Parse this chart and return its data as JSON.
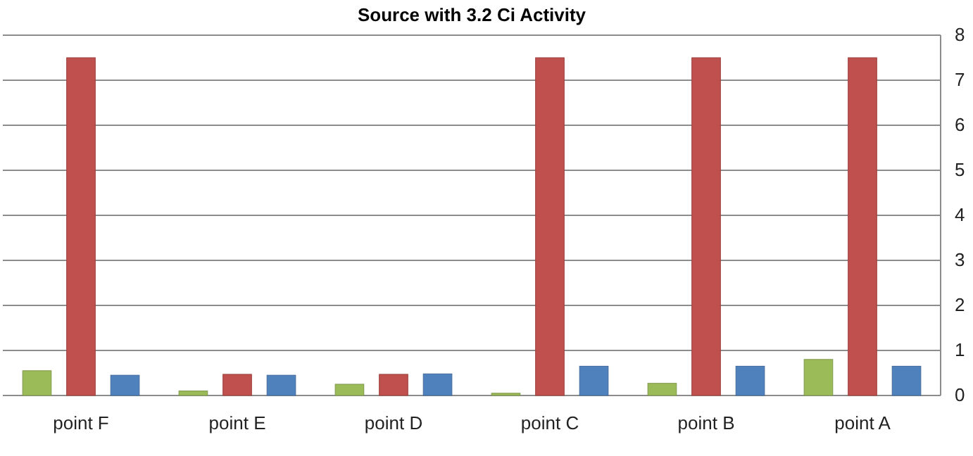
{
  "chart_data": {
    "type": "bar",
    "title": "Source with 3.2 Ci Activity",
    "categories": [
      "point F",
      "point E",
      "point D",
      "point C",
      "point B",
      "point A"
    ],
    "series": [
      {
        "color": "#9bbb59",
        "values": [
          0.55,
          0.1,
          0.25,
          0.05,
          0.27,
          0.8
        ]
      },
      {
        "color": "#c0504d",
        "values": [
          7.5,
          0.47,
          0.47,
          7.5,
          7.5,
          7.5
        ]
      },
      {
        "color": "#4f81bd",
        "values": [
          0.45,
          0.45,
          0.48,
          0.65,
          0.65,
          0.65
        ]
      }
    ],
    "ylim": [
      0,
      8
    ],
    "yticks": [
      0,
      1,
      2,
      3,
      4,
      5,
      6,
      7,
      8
    ],
    "grid": "y"
  }
}
